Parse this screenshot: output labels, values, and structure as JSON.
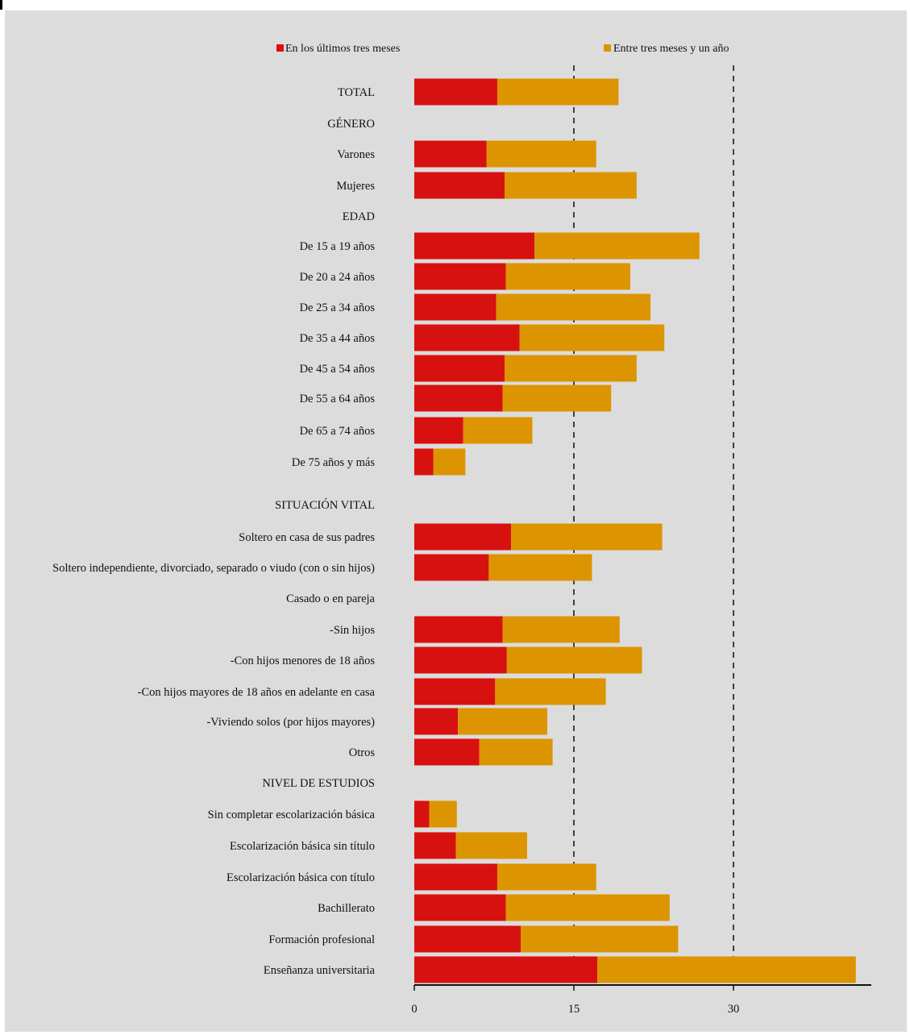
{
  "chart_data": {
    "type": "bar",
    "stacked": true,
    "orientation": "horizontal",
    "title": "",
    "xlabel": "",
    "ylabel": "",
    "xlim": [
      0,
      40
    ],
    "xticks": [
      0,
      15,
      30
    ],
    "gridlines_dashed_at": [
      15,
      30
    ],
    "legend_position": "top",
    "series": [
      {
        "name": "En los últimos tres meses",
        "color": "#d7110f"
      },
      {
        "name": "Entre tres meses y un año",
        "color": "#dc9500"
      }
    ],
    "rows": [
      {
        "label": "TOTAL",
        "header": false,
        "values": [
          7.8,
          11.4
        ]
      },
      {
        "label": "GÉNERO",
        "header": true
      },
      {
        "label": "Varones",
        "header": false,
        "values": [
          6.8,
          10.3
        ]
      },
      {
        "label": "Mujeres",
        "header": false,
        "values": [
          8.5,
          12.4
        ]
      },
      {
        "label": "EDAD",
        "header": true
      },
      {
        "label": "De 15 a  19  años",
        "header": false,
        "values": [
          11.3,
          15.5
        ]
      },
      {
        "label": "De 20 a 24 años",
        "header": false,
        "values": [
          8.6,
          11.7
        ]
      },
      {
        "label": "De 25 a 34 años",
        "header": false,
        "values": [
          7.7,
          14.5
        ]
      },
      {
        "label": "De 35 a 44 años",
        "header": false,
        "values": [
          9.9,
          13.6
        ]
      },
      {
        "label": "De 45 a 54 años",
        "header": false,
        "values": [
          8.5,
          12.4
        ]
      },
      {
        "label": "De 55 a 64 años",
        "header": false,
        "values": [
          8.3,
          10.2
        ]
      },
      {
        "label": "De 65 a 74 años",
        "header": false,
        "values": [
          4.6,
          6.5
        ]
      },
      {
        "label": "De 75 años y más",
        "header": false,
        "values": [
          1.8,
          3.0
        ]
      },
      {
        "label": "SITUACIÓN VITAL",
        "header": true
      },
      {
        "label": "Soltero en casa de sus padres",
        "header": false,
        "values": [
          9.1,
          14.2
        ]
      },
      {
        "label": "Soltero independiente, divorciado, separado o viudo (con o sin hijos)",
        "header": false,
        "values": [
          7.0,
          9.7
        ]
      },
      {
        "label": "Casado o en pareja",
        "header": true
      },
      {
        "label": "-Sin hijos",
        "header": false,
        "values": [
          8.3,
          11.0
        ]
      },
      {
        "label": "-Con hijos menores de 18 años",
        "header": false,
        "values": [
          8.7,
          12.7
        ]
      },
      {
        "label": "-Con hijos mayores de 18 años en adelante  en casa",
        "header": false,
        "values": [
          7.6,
          10.4
        ]
      },
      {
        "label": "-Viviendo solos (por hijos mayores)",
        "header": false,
        "values": [
          4.1,
          8.4
        ]
      },
      {
        "label": "Otros",
        "header": false,
        "values": [
          6.1,
          6.9
        ]
      },
      {
        "label": "NIVEL DE ESTUDIOS",
        "header": true
      },
      {
        "label": "Sin completar escolarización básica",
        "header": false,
        "values": [
          1.4,
          2.6
        ]
      },
      {
        "label": "Escolarización básica sin título",
        "header": false,
        "values": [
          3.9,
          6.7
        ]
      },
      {
        "label": "Escolarización básica con título",
        "header": false,
        "values": [
          7.8,
          9.3
        ]
      },
      {
        "label": "Bachillerato",
        "header": false,
        "values": [
          8.6,
          15.4
        ]
      },
      {
        "label": "Formación profesional",
        "header": false,
        "values": [
          10.0,
          14.8
        ]
      },
      {
        "label": "Enseñanza universitaria",
        "header": false,
        "values": [
          17.2,
          24.3
        ]
      }
    ]
  }
}
